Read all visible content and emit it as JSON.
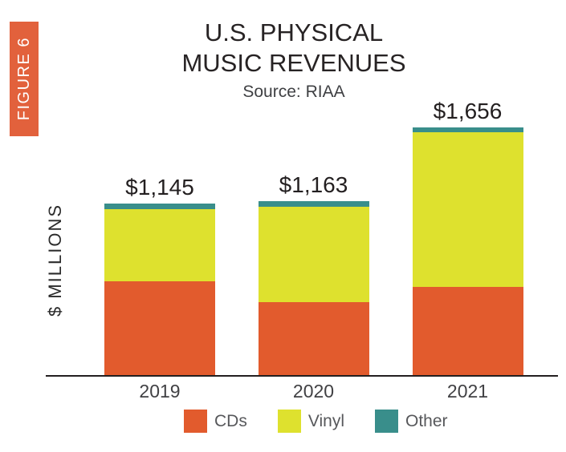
{
  "figure_badge": {
    "label": "FIGURE 6",
    "color": "#E2613C"
  },
  "header": {
    "title_line1": "U.S. PHYSICAL",
    "title_line2": "MUSIC REVENUES",
    "source": "Source: RIAA"
  },
  "chart_data": {
    "type": "bar",
    "stacked": true,
    "title": "U.S. PHYSICAL MUSIC REVENUES",
    "subtitle": "Source: RIAA",
    "ylabel": "$ MILLIONS",
    "xlabel": "",
    "grid": false,
    "legend_position": "bottom",
    "categories": [
      "2019",
      "2020",
      "2021"
    ],
    "series": [
      {
        "name": "CDs",
        "color": "#E25B2D",
        "values": [
          625,
          490,
          590
        ]
      },
      {
        "name": "Vinyl",
        "color": "#DEE12E",
        "values": [
          485,
          635,
          1034
        ]
      },
      {
        "name": "Other",
        "color": "#398E8B",
        "values": [
          35,
          38,
          32
        ]
      }
    ],
    "totals": [
      1145,
      1163,
      1656
    ],
    "total_labels": [
      "$1,145",
      "$1,163",
      "$1,656"
    ]
  }
}
